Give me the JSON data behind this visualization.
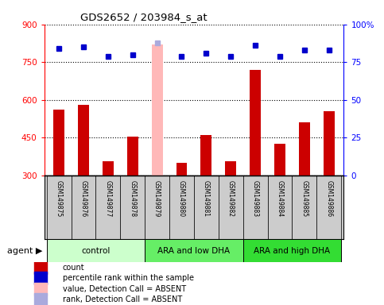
{
  "title": "GDS2652 / 203984_s_at",
  "samples": [
    "GSM149875",
    "GSM149876",
    "GSM149877",
    "GSM149878",
    "GSM149879",
    "GSM149880",
    "GSM149881",
    "GSM149882",
    "GSM149883",
    "GSM149884",
    "GSM149885",
    "GSM149886"
  ],
  "counts": [
    560,
    580,
    355,
    453,
    820,
    350,
    460,
    355,
    720,
    427,
    510,
    555
  ],
  "percentile_ranks": [
    84,
    85,
    79,
    80,
    88,
    79,
    81,
    79,
    86,
    79,
    83,
    83
  ],
  "absent_mask": [
    false,
    false,
    false,
    false,
    true,
    false,
    false,
    false,
    false,
    false,
    false,
    false
  ],
  "bar_color_normal": "#cc0000",
  "bar_color_absent": "#ffb8b8",
  "dot_color_normal": "#0000cc",
  "dot_color_absent": "#aaaadd",
  "ylim_left": [
    300,
    900
  ],
  "ylim_right": [
    0,
    100
  ],
  "yticks_left": [
    300,
    450,
    600,
    750,
    900
  ],
  "yticks_right": [
    0,
    25,
    50,
    75,
    100
  ],
  "groups": [
    {
      "label": "control",
      "start": 0,
      "end": 3,
      "color": "#ccffcc"
    },
    {
      "label": "ARA and low DHA",
      "start": 4,
      "end": 7,
      "color": "#66ee66"
    },
    {
      "label": "ARA and high DHA",
      "start": 8,
      "end": 11,
      "color": "#33dd33"
    }
  ],
  "legend_items": [
    {
      "color": "#cc0000",
      "label": "count"
    },
    {
      "color": "#0000cc",
      "label": "percentile rank within the sample"
    },
    {
      "color": "#ffb8b8",
      "label": "value, Detection Call = ABSENT"
    },
    {
      "color": "#aaaadd",
      "label": "rank, Detection Call = ABSENT"
    }
  ],
  "agent_label": "agent",
  "sample_bg_color": "#cccccc",
  "plot_bg_color": "#ffffff",
  "fig_bg_color": "#ffffff"
}
